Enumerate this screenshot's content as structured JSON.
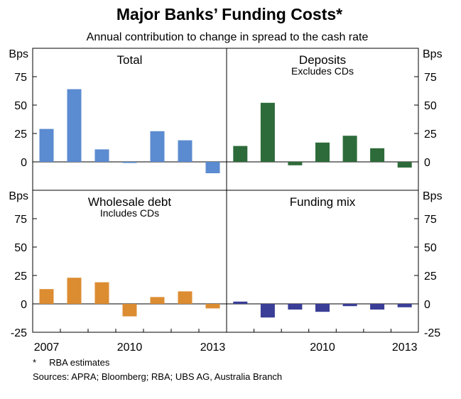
{
  "chart_data": {
    "type": "bar",
    "title": "Major Banks’ Funding Costs*",
    "subtitle": "Annual contribution to change in spread to the cash rate",
    "y_unit_label": "Bps",
    "x_tick_labels": [
      "2007",
      "2010",
      "2013"
    ],
    "categories": [
      "2007",
      "2008",
      "2009",
      "2010",
      "2011",
      "2012",
      "2013"
    ],
    "ylim": [
      -25,
      100
    ],
    "y_ticks": [
      0,
      25,
      50,
      75
    ],
    "y_ticks_bottom": [
      -25,
      0,
      25,
      50,
      75
    ],
    "panels": [
      {
        "id": "total",
        "name": "Total",
        "sub": "",
        "color": "#5b8bd0",
        "values": [
          29,
          64,
          11,
          -1,
          27,
          19,
          -10
        ]
      },
      {
        "id": "deposits",
        "name": "Deposits",
        "sub": "Excludes CDs",
        "color": "#2e6b3a",
        "values": [
          14,
          52,
          -3,
          17,
          23,
          12,
          -5
        ]
      },
      {
        "id": "wholesale",
        "name": "Wholesale debt",
        "sub": "Includes CDs",
        "color": "#dc8c31",
        "values": [
          13,
          23,
          19,
          -11,
          6,
          11,
          -4
        ]
      },
      {
        "id": "mix",
        "name": "Funding mix",
        "sub": "",
        "color": "#3a3e96",
        "values": [
          2,
          -12,
          -5,
          -7,
          -2,
          -5,
          -3
        ]
      }
    ]
  },
  "footnotes": {
    "note": "*     RBA estimates",
    "sources": "Sources: APRA; Bloomberg; RBA; UBS AG, Australia Branch"
  }
}
